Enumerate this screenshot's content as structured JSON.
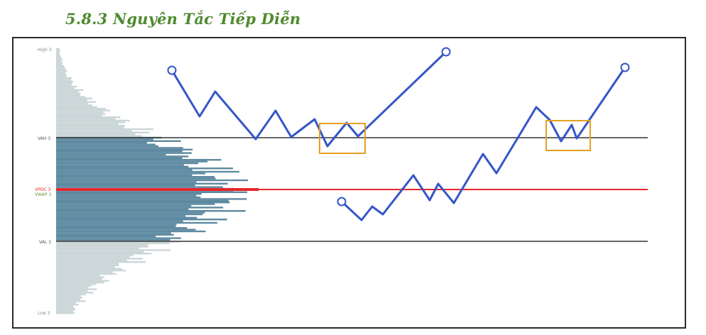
{
  "heading": "5.8.3 Nguyên Tắc Tiếp Diễn",
  "levels": {
    "high": "High 3",
    "vah": "VAH 3",
    "vpoc": "VPOC 3",
    "vwap": "VWAP 3",
    "val": "VAL 3",
    "low": "Low 3"
  },
  "colors": {
    "heading": "#4e8a2e",
    "price_path": "#3556c8",
    "poc_line": "#e8262a",
    "value_area_lines": "#333333",
    "highlight_box": "#e6a020",
    "profile_inside_value_area": "#5e8aa1",
    "profile_outside_value_area": "#cbd6d8"
  }
}
